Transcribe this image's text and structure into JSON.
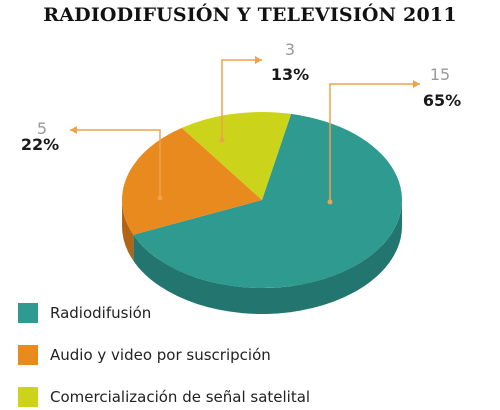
{
  "chart_data": {
    "type": "pie",
    "title": "RADIODIFUSIÓN Y TELEVISIÓN 2011",
    "slices": [
      {
        "label": "Radiodifusión",
        "value": 15,
        "percent": "65%",
        "count_label": "15",
        "color": "#2e9a90",
        "side_color": "#23766f"
      },
      {
        "label": "Audio y video por suscripción",
        "value": 5,
        "percent": "22%",
        "count_label": "5",
        "color": "#e88a1e",
        "side_color": "#b06614"
      },
      {
        "label": "Comercialización de señal satelital",
        "value": 3,
        "percent": "13%",
        "count_label": "3",
        "color": "#cbd41a",
        "side_color": "#9aa010"
      }
    ],
    "legend_placement": "bottom-left",
    "callout_color": "#f0a24a",
    "count_label_color": "#9a9a9a",
    "percent_label_color": "#1a1a1a"
  }
}
